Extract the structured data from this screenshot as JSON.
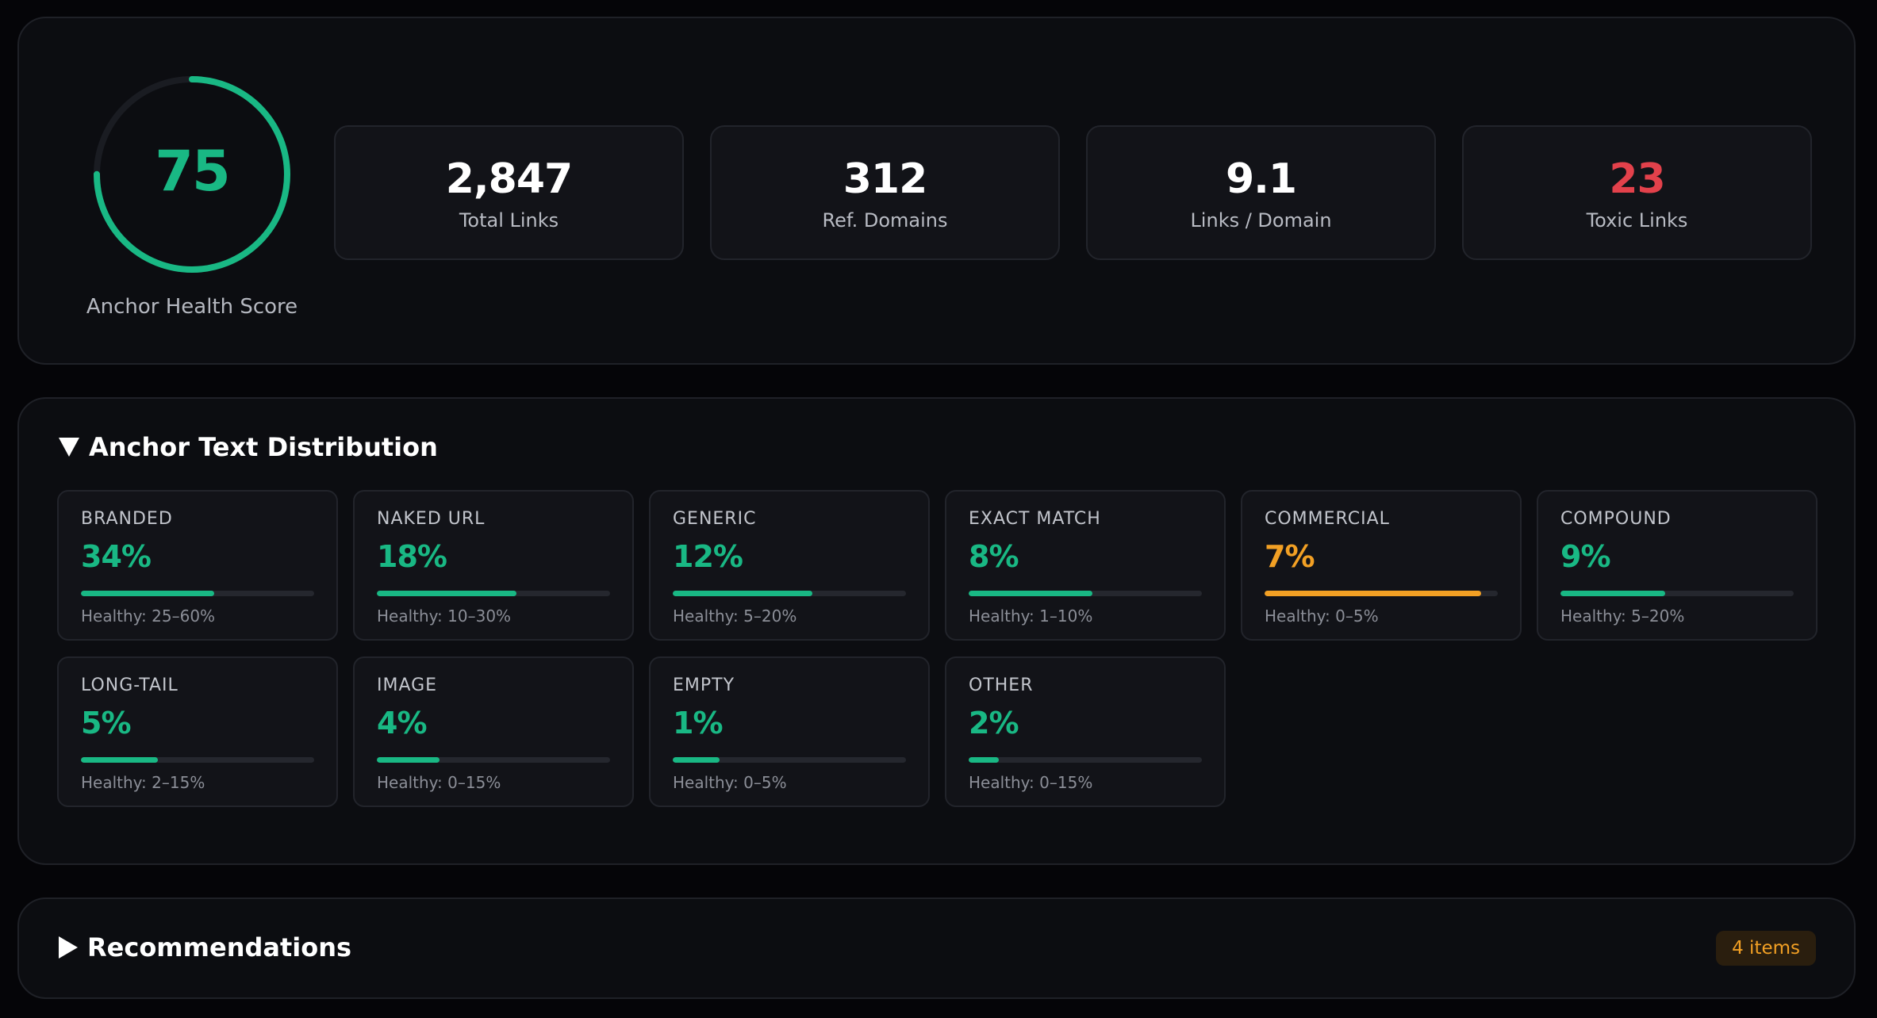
{
  "summary": {
    "score": {
      "value": "75",
      "label": "Anchor Health Score",
      "fraction": 0.75,
      "color": "#19b884"
    },
    "stats": [
      {
        "value": "2,847",
        "label": "Total Links"
      },
      {
        "value": "312",
        "label": "Ref. Domains"
      },
      {
        "value": "9.1",
        "label": "Links / Domain"
      },
      {
        "value": "23",
        "label": "Toxic Links"
      }
    ]
  },
  "distribution": {
    "title": "Anchor Text Distribution",
    "toggle_icon": "triangle-down-icon",
    "items": [
      {
        "name": "BRANDED",
        "percent": "34%",
        "fill": 0.57,
        "healthy": "Healthy: 25–60%",
        "status": "ok"
      },
      {
        "name": "NAKED URL",
        "percent": "18%",
        "fill": 0.6,
        "healthy": "Healthy: 10–30%",
        "status": "ok"
      },
      {
        "name": "GENERIC",
        "percent": "12%",
        "fill": 0.6,
        "healthy": "Healthy: 5–20%",
        "status": "ok"
      },
      {
        "name": "EXACT MATCH",
        "percent": "8%",
        "fill": 0.53,
        "healthy": "Healthy: 1–10%",
        "status": "ok"
      },
      {
        "name": "COMMERCIAL",
        "percent": "7%",
        "fill": 0.93,
        "healthy": "Healthy: 0–5%",
        "status": "warn"
      },
      {
        "name": "COMPOUND",
        "percent": "9%",
        "fill": 0.45,
        "healthy": "Healthy: 5–20%",
        "status": "ok"
      },
      {
        "name": "LONG-TAIL",
        "percent": "5%",
        "fill": 0.33,
        "healthy": "Healthy: 2–15%",
        "status": "ok"
      },
      {
        "name": "IMAGE",
        "percent": "4%",
        "fill": 0.27,
        "healthy": "Healthy: 0–15%",
        "status": "ok"
      },
      {
        "name": "EMPTY",
        "percent": "1%",
        "fill": 0.2,
        "healthy": "Healthy: 0–5%",
        "status": "ok"
      },
      {
        "name": "OTHER",
        "percent": "2%",
        "fill": 0.13,
        "healthy": "Healthy: 0–15%",
        "status": "ok"
      }
    ]
  },
  "recommendations": {
    "title": "Recommendations",
    "toggle_icon": "triangle-right-icon",
    "badge": "4 items"
  },
  "colors": {
    "ok": "#19b884",
    "warn": "#f2a024",
    "danger": "#e3414b"
  }
}
